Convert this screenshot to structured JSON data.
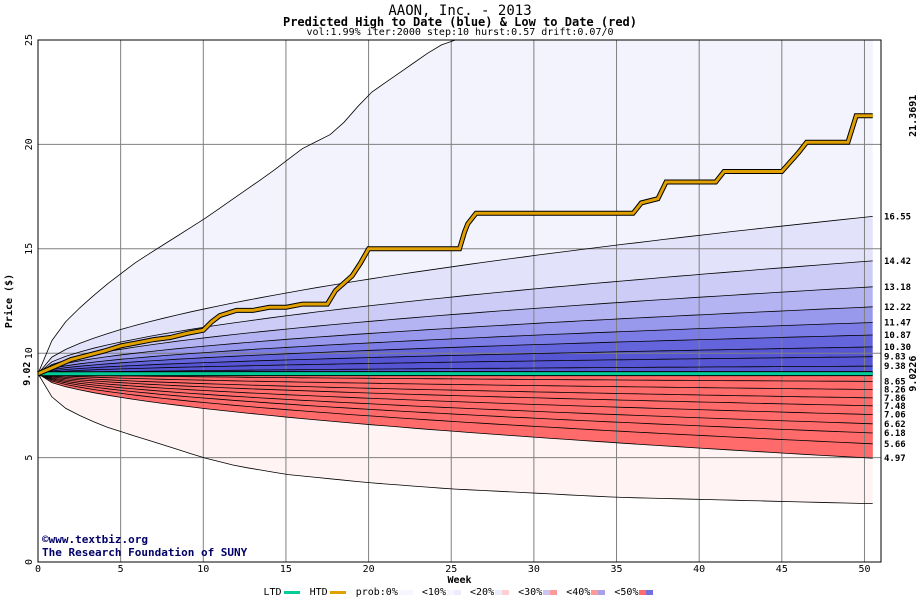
{
  "chart_data": {
    "type": "area",
    "title": "AAON, Inc. - 2013",
    "subtitle": "Predicted High to Date (blue) &  Low to Date (red)",
    "params": "vol:1.99% iter:2000 step:10 hurst:0.57 drift:0.07/0",
    "xlabel": "Week",
    "ylabel": "Price ($)",
    "xlim": [
      0,
      51
    ],
    "ylim": [
      0,
      25
    ],
    "x_ticks": [
      "0",
      "5",
      "10",
      "15",
      "20",
      "25",
      "30",
      "35",
      "40",
      "45",
      "50"
    ],
    "y_ticks": [
      "0",
      "5",
      "10",
      "15",
      "20",
      "25"
    ],
    "grid": true,
    "start_price": 9.02,
    "start_price_label": "9.02",
    "high_to_date_final": 21.3691,
    "high_to_date_final_label": "21.3691",
    "low_to_date_final": 9.0226,
    "low_to_date_final_label": "9.0226",
    "percentile_levels": [
      {
        "value": 16.55,
        "label": "16.55",
        "side": "high"
      },
      {
        "value": 14.42,
        "label": "14.42",
        "side": "high"
      },
      {
        "value": 13.18,
        "label": "13.18",
        "side": "high"
      },
      {
        "value": 12.22,
        "label": "12.22",
        "side": "high"
      },
      {
        "value": 11.47,
        "label": "11.47",
        "side": "high"
      },
      {
        "value": 10.87,
        "label": "10.87",
        "side": "high"
      },
      {
        "value": 10.3,
        "label": "10.30",
        "side": "high"
      },
      {
        "value": 9.83,
        "label": "9.83",
        "side": "high"
      },
      {
        "value": 9.38,
        "label": "9.38",
        "side": "high"
      },
      {
        "value": 8.65,
        "label": "8.65",
        "side": "low"
      },
      {
        "value": 8.26,
        "label": "8.26",
        "side": "low"
      },
      {
        "value": 7.86,
        "label": "7.86",
        "side": "low"
      },
      {
        "value": 7.48,
        "label": "7.48",
        "side": "low"
      },
      {
        "value": 7.06,
        "label": "7.06",
        "side": "low"
      },
      {
        "value": 6.62,
        "label": "6.62",
        "side": "low"
      },
      {
        "value": 6.18,
        "label": "6.18",
        "side": "low"
      },
      {
        "value": 5.66,
        "label": "5.66",
        "side": "low"
      },
      {
        "value": 4.97,
        "label": "4.97",
        "side": "low"
      }
    ],
    "envelope": {
      "max_high": [
        [
          0,
          9.02
        ],
        [
          1,
          10.9
        ],
        [
          2,
          11.8
        ],
        [
          4,
          13.2
        ],
        [
          6,
          14.4
        ],
        [
          8,
          15.4
        ],
        [
          10,
          16.4
        ],
        [
          12,
          17.5
        ],
        [
          14,
          18.6
        ],
        [
          16,
          19.8
        ],
        [
          18,
          20.6
        ],
        [
          20,
          22.4
        ],
        [
          22,
          23.5
        ],
        [
          24,
          24.6
        ],
        [
          25,
          25.0
        ]
      ],
      "min_low": [
        [
          0,
          9.02
        ],
        [
          1,
          7.7
        ],
        [
          2,
          7.2
        ],
        [
          4,
          6.5
        ],
        [
          6,
          6.0
        ],
        [
          8,
          5.5
        ],
        [
          10,
          5.0
        ],
        [
          12,
          4.6
        ],
        [
          15,
          4.2
        ],
        [
          20,
          3.8
        ],
        [
          25,
          3.5
        ],
        [
          30,
          3.3
        ],
        [
          35,
          3.1
        ],
        [
          40,
          3.0
        ],
        [
          45,
          2.9
        ],
        [
          50,
          2.8
        ]
      ]
    },
    "high_to_date_series": [
      [
        0,
        9.02
      ],
      [
        1,
        9.35
      ],
      [
        2,
        9.7
      ],
      [
        3,
        9.9
      ],
      [
        4,
        10.1
      ],
      [
        5,
        10.35
      ],
      [
        6,
        10.5
      ],
      [
        7,
        10.65
      ],
      [
        8,
        10.75
      ],
      [
        9,
        10.95
      ],
      [
        10,
        11.1
      ],
      [
        10.5,
        11.5
      ],
      [
        11,
        11.8
      ],
      [
        12,
        12.05
      ],
      [
        13,
        12.05
      ],
      [
        14,
        12.2
      ],
      [
        15,
        12.2
      ],
      [
        16,
        12.35
      ],
      [
        17,
        12.35
      ],
      [
        17.5,
        12.35
      ],
      [
        18,
        13.0
      ],
      [
        19,
        13.7
      ],
      [
        19.5,
        14.3
      ],
      [
        20,
        15.0
      ],
      [
        25.5,
        15.0
      ],
      [
        25.8,
        15.8
      ],
      [
        26,
        16.2
      ],
      [
        26.5,
        16.7
      ],
      [
        36,
        16.7
      ],
      [
        36.5,
        17.2
      ],
      [
        37.5,
        17.4
      ],
      [
        38,
        18.2
      ],
      [
        41,
        18.2
      ],
      [
        41.5,
        18.7
      ],
      [
        45,
        18.7
      ],
      [
        46,
        19.6
      ],
      [
        46.5,
        20.1
      ],
      [
        49,
        20.1
      ],
      [
        49.5,
        21.37
      ],
      [
        50.5,
        21.37
      ]
    ],
    "low_to_date_series": [
      [
        0,
        9.02
      ],
      [
        50.5,
        9.0226
      ]
    ]
  },
  "credits": {
    "line1": "©www.textbiz.org",
    "line2": "The Research Foundation of SUNY"
  },
  "legend": {
    "ltd_label": "LTD",
    "htd_label": "HTD",
    "prob_label": "prob:0%",
    "bands": [
      "<10%",
      "<20%",
      "<30%",
      "<40%",
      "<50%"
    ],
    "ltd_color": "#00cc99",
    "htd_color": "#e0a000"
  },
  "colors": {
    "blue_bands": [
      "#f3f3fd",
      "#e2e2fa",
      "#ccccf6",
      "#b4b4f2",
      "#9898ec",
      "#7c7ce6",
      "#6464dd",
      "#5656d4"
    ],
    "red_bands": [
      "#fff3f3",
      "#ffe2e2",
      "#ffcccc",
      "#ffb4b4",
      "#ff9c9c",
      "#ff8888",
      "#ff7777",
      "#ff6b6b"
    ],
    "legend_swatches": [
      "#f6f6ff",
      "#ececfc",
      "#ffd0d0",
      "#ccc4f0",
      "#ff9898",
      "#a8a0e8",
      "#ff6e6e",
      "#7070e0"
    ]
  }
}
